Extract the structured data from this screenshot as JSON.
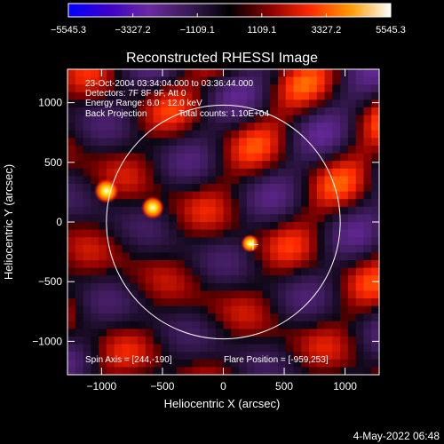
{
  "chart_data": {
    "type": "heatmap",
    "title": "Reconstructed RHESSI Image",
    "xlabel": "Heliocentric X (arcsec)",
    "ylabel": "Heliocentric Y (arcsec)",
    "xlim": [
      -1280,
      1280
    ],
    "ylim": [
      -1280,
      1280
    ],
    "xticks": [
      -1000,
      -500,
      0,
      500,
      1000
    ],
    "yticks": [
      -1000,
      -500,
      0,
      500,
      1000
    ],
    "xtick_labels": [
      "−1000",
      "−500",
      "0",
      "500",
      "1000"
    ],
    "ytick_labels": [
      "−1000",
      "−500",
      "0",
      "500",
      "1000"
    ],
    "colorbar": {
      "min": -5545.3,
      "max": 5545.3,
      "tick_values": [
        -5545.3,
        -3327.2,
        -1109.1,
        1109.1,
        3327.2,
        5545.3
      ],
      "tick_labels": [
        "−5545.3",
        "−3327.2",
        "−1109.1",
        "1109.1",
        "3327.2",
        "5545.3"
      ],
      "colors": [
        "#0000ff",
        "#3c00c8",
        "#6a2aa0",
        "#3a1a55",
        "#000000",
        "#8a0000",
        "#ff2a00",
        "#ff9a00",
        "#ffffff"
      ]
    },
    "solar_disk_radius": 960,
    "solar_disk_color": "#ffffff",
    "flare_position": [
      -959,
      253
    ],
    "marker_position": [
      244,
      -190
    ],
    "bright_sources": [
      {
        "x": -960,
        "y": 260,
        "value": 5545.3
      },
      {
        "x": -580,
        "y": 120,
        "value": 5000
      },
      {
        "x": 220,
        "y": -180,
        "value": 3500
      }
    ],
    "annotations": [
      "23-Oct-2004 03:34:04.000 to 03:36:44.000",
      "Detectors: 7F 8F 9F, Att 0",
      "Energy Range: 6.0 - 12.0 keV",
      "Back Projection",
      "Total counts: 1.10E+04",
      "Spin Axis = [244,-190]",
      "Flare Position = [-959,253]"
    ],
    "grid": false
  },
  "footer": {
    "timestamp": "4-May-2022 06:48"
  }
}
